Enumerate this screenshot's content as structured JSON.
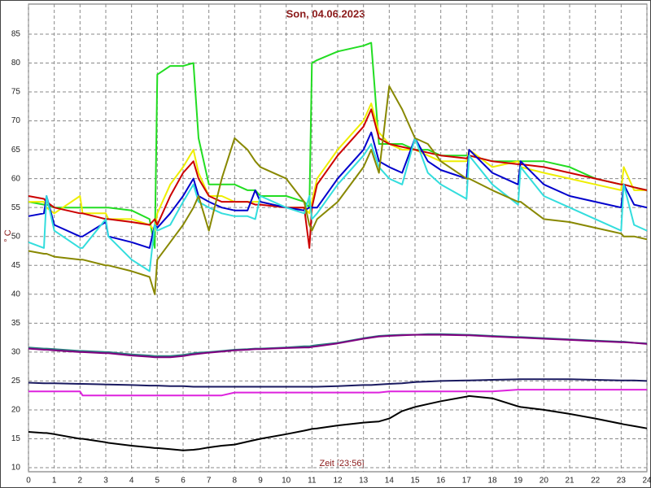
{
  "chart_data": {
    "type": "line",
    "title": "Son, 04.06.2023",
    "xlabel": "Zeit [23:56]",
    "ylabel": "° C",
    "x": [
      0,
      0.6,
      0.7,
      1,
      2,
      2.1,
      3,
      3.1,
      4,
      4.7,
      4.9,
      5,
      5.5,
      6,
      6.4,
      6.6,
      7,
      7.5,
      8,
      8.5,
      8.8,
      9,
      10,
      10.7,
      10.9,
      11,
      11.2,
      12,
      13,
      13.3,
      13.6,
      14,
      14.5,
      15,
      15.5,
      16,
      17,
      17.1,
      18,
      19,
      19.1,
      20,
      21,
      22,
      23,
      23.1,
      23.5,
      24
    ],
    "xlim": [
      0,
      24
    ],
    "xticks": [
      0,
      1,
      2,
      3,
      4,
      5,
      6,
      7,
      8,
      9,
      10,
      11,
      12,
      13,
      14,
      15,
      16,
      17,
      18,
      19,
      20,
      21,
      22,
      23,
      24
    ],
    "ylim": [
      9.3,
      90.2
    ],
    "yticks": [
      10,
      15,
      20,
      25,
      30,
      35,
      40,
      45,
      50,
      55,
      60,
      65,
      70,
      75,
      80,
      85
    ],
    "grid": true,
    "series": [
      {
        "color": "#22dd22",
        "values": [
          56,
          55.5,
          55.5,
          55,
          55,
          55,
          55,
          55,
          54.5,
          53,
          48,
          78,
          79.5,
          79.5,
          80,
          67,
          59,
          59,
          59,
          58,
          58,
          57,
          57,
          56,
          55,
          80,
          80.5,
          82,
          83,
          83.5,
          66,
          66,
          66,
          65,
          65,
          64,
          64,
          64,
          63,
          63,
          63,
          63,
          62,
          60,
          59,
          59,
          58.5,
          58
        ]
      },
      {
        "color": "#eeee00",
        "values": [
          56,
          56,
          55,
          54,
          57,
          54,
          54,
          53,
          53,
          52,
          51,
          54,
          59,
          62,
          65,
          61,
          57,
          57,
          56,
          56,
          56,
          56,
          55,
          55,
          54,
          56,
          60,
          65,
          70,
          73,
          68,
          66,
          65,
          65,
          64,
          63,
          63,
          65,
          62,
          63,
          62,
          61,
          60,
          59,
          58,
          62,
          58,
          58
        ]
      },
      {
        "color": "#cc0000",
        "values": [
          57,
          56.5,
          56,
          55,
          54,
          54,
          53,
          53,
          52.5,
          52,
          53,
          52,
          57,
          61,
          63,
          60,
          57,
          56,
          56,
          56,
          55.5,
          55.5,
          55,
          55,
          48,
          55,
          59,
          64,
          69,
          72,
          67,
          66,
          65.5,
          65,
          64.5,
          64,
          63.5,
          64,
          63,
          62.5,
          62.5,
          62,
          61,
          60,
          59,
          59,
          58.5,
          58
        ]
      },
      {
        "color": "#0000cc",
        "values": [
          53.5,
          54,
          57,
          52,
          50,
          50,
          52.5,
          50,
          49,
          48,
          52,
          51.5,
          54,
          57,
          60,
          57,
          56,
          55,
          54.5,
          54.5,
          58,
          56,
          55,
          54.5,
          55,
          55,
          55,
          60,
          65,
          68,
          63,
          62,
          61,
          67,
          63,
          61.5,
          60,
          65,
          61,
          59,
          63,
          59,
          57,
          56,
          55,
          59,
          55.5,
          55
        ]
      },
      {
        "color": "#33dddd",
        "values": [
          49,
          48,
          57,
          51,
          48,
          48,
          53,
          50,
          46,
          44,
          52,
          51,
          52,
          56,
          59,
          56,
          55,
          54,
          53.5,
          53.5,
          53,
          57,
          55,
          54,
          57,
          53,
          54,
          59,
          64,
          66,
          62,
          60,
          59,
          67,
          61,
          59,
          56.5,
          64,
          59,
          55.5,
          62,
          57,
          55,
          53,
          51,
          59,
          52,
          51
        ]
      },
      {
        "color": "#888800",
        "values": [
          47.5,
          47,
          47,
          46.5,
          46,
          46,
          45,
          45,
          44,
          43,
          40,
          46,
          49,
          52,
          55,
          57,
          51,
          60,
          67,
          65,
          63,
          62,
          60,
          56,
          52,
          51,
          53,
          56,
          62,
          65,
          61,
          76,
          72,
          67,
          66,
          63,
          60,
          60,
          58,
          56,
          56,
          53,
          52.5,
          51.5,
          50.5,
          50,
          50,
          49.5
        ]
      },
      {
        "color": "#2a8080",
        "values": [
          30.8,
          30.6,
          30.6,
          30.5,
          30.2,
          30.2,
          30,
          30,
          29.6,
          29.4,
          29.3,
          29.3,
          29.3,
          29.5,
          29.8,
          29.9,
          30,
          30.2,
          30.4,
          30.5,
          30.6,
          30.6,
          30.8,
          31,
          31,
          31.1,
          31.2,
          31.6,
          32.4,
          32.6,
          32.8,
          32.9,
          33,
          33,
          33.1,
          33.1,
          33,
          33,
          32.8,
          32.6,
          32.6,
          32.4,
          32.2,
          32,
          31.8,
          31.8,
          31.6,
          31.5
        ]
      },
      {
        "color": "#800080",
        "values": [
          30.6,
          30.4,
          30.4,
          30.3,
          30,
          30,
          29.8,
          29.8,
          29.4,
          29.2,
          29.1,
          29.1,
          29.1,
          29.3,
          29.6,
          29.7,
          29.9,
          30.1,
          30.3,
          30.4,
          30.5,
          30.5,
          30.7,
          30.8,
          30.8,
          30.9,
          31,
          31.5,
          32.3,
          32.5,
          32.7,
          32.8,
          32.9,
          33,
          33,
          33,
          32.9,
          32.9,
          32.7,
          32.5,
          32.5,
          32.3,
          32.1,
          31.9,
          31.7,
          31.7,
          31.6,
          31.4
        ]
      },
      {
        "color": "#1a1a60",
        "values": [
          24.7,
          24.6,
          24.6,
          24.6,
          24.5,
          24.5,
          24.4,
          24.4,
          24.3,
          24.2,
          24.2,
          24.2,
          24.1,
          24.1,
          24,
          24,
          24,
          24,
          24,
          24,
          24,
          24,
          24,
          24,
          24,
          24,
          24,
          24.1,
          24.3,
          24.3,
          24.4,
          24.5,
          24.6,
          24.8,
          24.9,
          25,
          25.1,
          25.1,
          25.2,
          25.3,
          25.3,
          25.3,
          25.3,
          25.2,
          25.1,
          25.1,
          25.1,
          25
        ]
      },
      {
        "color": "#dd22dd",
        "values": [
          23.2,
          23.2,
          23.2,
          23.2,
          23.2,
          22.5,
          22.5,
          22.5,
          22.5,
          22.5,
          22.5,
          22.5,
          22.5,
          22.5,
          22.5,
          22.5,
          22.5,
          22.5,
          23,
          23,
          23,
          23,
          23,
          23,
          23,
          23,
          23,
          23,
          23,
          23,
          23,
          23.2,
          23.2,
          23.2,
          23.2,
          23.2,
          23.2,
          23.2,
          23.2,
          23.5,
          23.5,
          23.5,
          23.5,
          23.5,
          23.5,
          23.5,
          23.5,
          23.5
        ]
      },
      {
        "color": "#000000",
        "values": [
          16.2,
          16,
          16,
          15.8,
          15,
          15,
          14.4,
          14.3,
          13.8,
          13.5,
          13.4,
          13.4,
          13.2,
          13,
          13.1,
          13.2,
          13.5,
          13.8,
          14,
          14.5,
          14.8,
          15,
          15.8,
          16.4,
          16.6,
          16.7,
          16.8,
          17.3,
          17.8,
          17.9,
          18,
          18.5,
          19.8,
          20.5,
          21,
          21.5,
          22.3,
          22.4,
          22,
          20.6,
          20.5,
          20,
          19.3,
          18.5,
          17.6,
          17.5,
          17.2,
          16.8
        ]
      }
    ]
  }
}
